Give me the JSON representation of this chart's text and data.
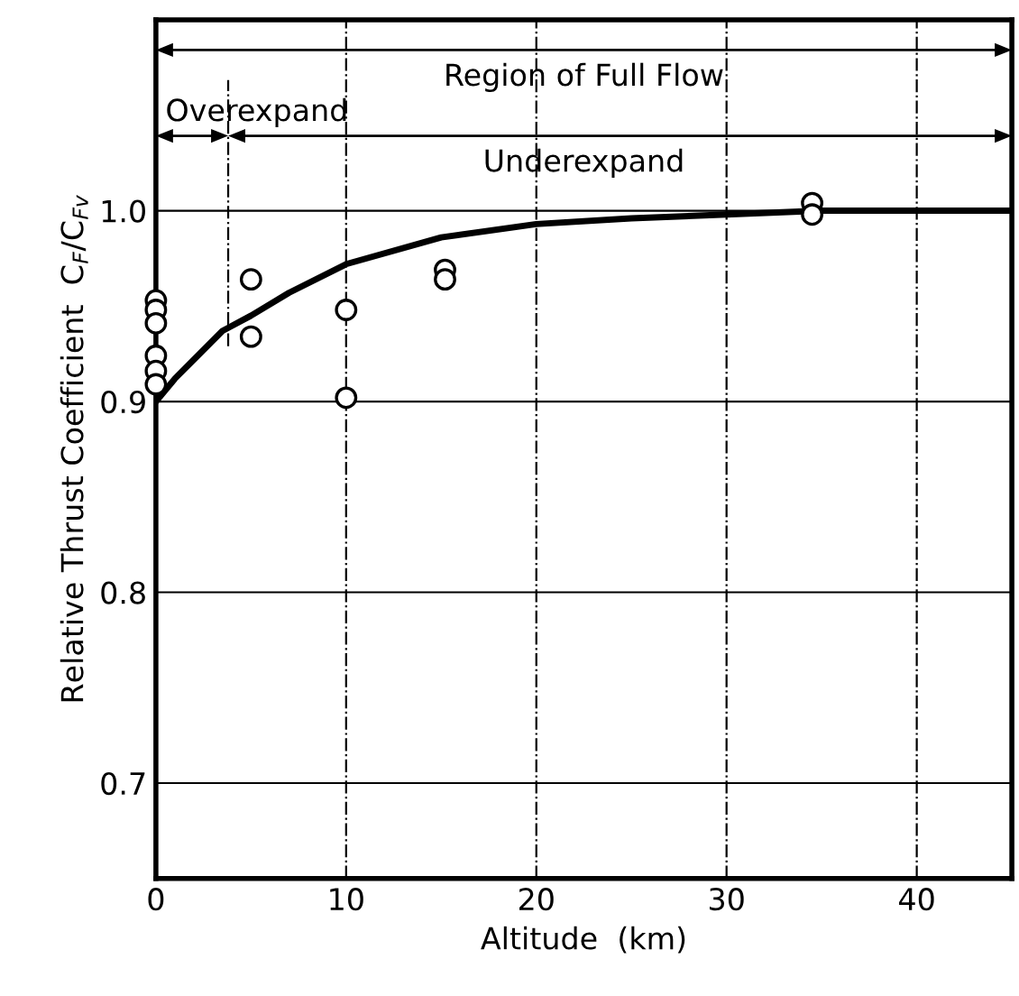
{
  "chart_data": {
    "type": "scatter",
    "xlabel": "Altitude  (km)",
    "ylabel": "Relative Thrust Coefficient  C$_{F}$/C$_{Fv}$",
    "xlim": [
      0,
      45
    ],
    "ylim": [
      0.65,
      1.1
    ],
    "xticks": [
      0,
      10,
      20,
      30,
      40
    ],
    "yticks": [
      0.7,
      0.8,
      0.9,
      {
        "value": 1.0,
        "label": "1.0"
      }
    ],
    "grid": true,
    "marker": "circle",
    "series": [
      {
        "color": "#000000",
        "x": [
          0,
          0,
          0,
          0,
          0,
          0,
          5,
          5,
          10,
          10,
          15.2,
          15.2,
          34.5,
          34.5
        ],
        "values": [
          0.953,
          0.948,
          0.941,
          0.924,
          0.916,
          0.909,
          0.964,
          0.934,
          0.948,
          0.902,
          0.969,
          0.964,
          1.004,
          0.998
        ]
      },
      {
        "type": "line",
        "color": "#000000",
        "marker": "none",
        "line_style": "solid",
        "x": [
          0,
          1,
          2,
          3.5,
          5,
          7,
          10,
          15,
          20,
          25,
          30,
          35,
          45
        ],
        "values": [
          0.9,
          0.912,
          0.922,
          0.937,
          0.945,
          0.957,
          0.972,
          0.986,
          0.993,
          0.996,
          0.998,
          1.0,
          1.0
        ]
      }
    ],
    "ref_lines": [
      {
        "axis": "x",
        "value": 3.8,
        "label": null,
        "color": "#000000",
        "line_style": "dashed"
      }
    ],
    "annotations": [
      "Region of Full Flow",
      "Overexpand",
      "Underexpand"
    ]
  }
}
